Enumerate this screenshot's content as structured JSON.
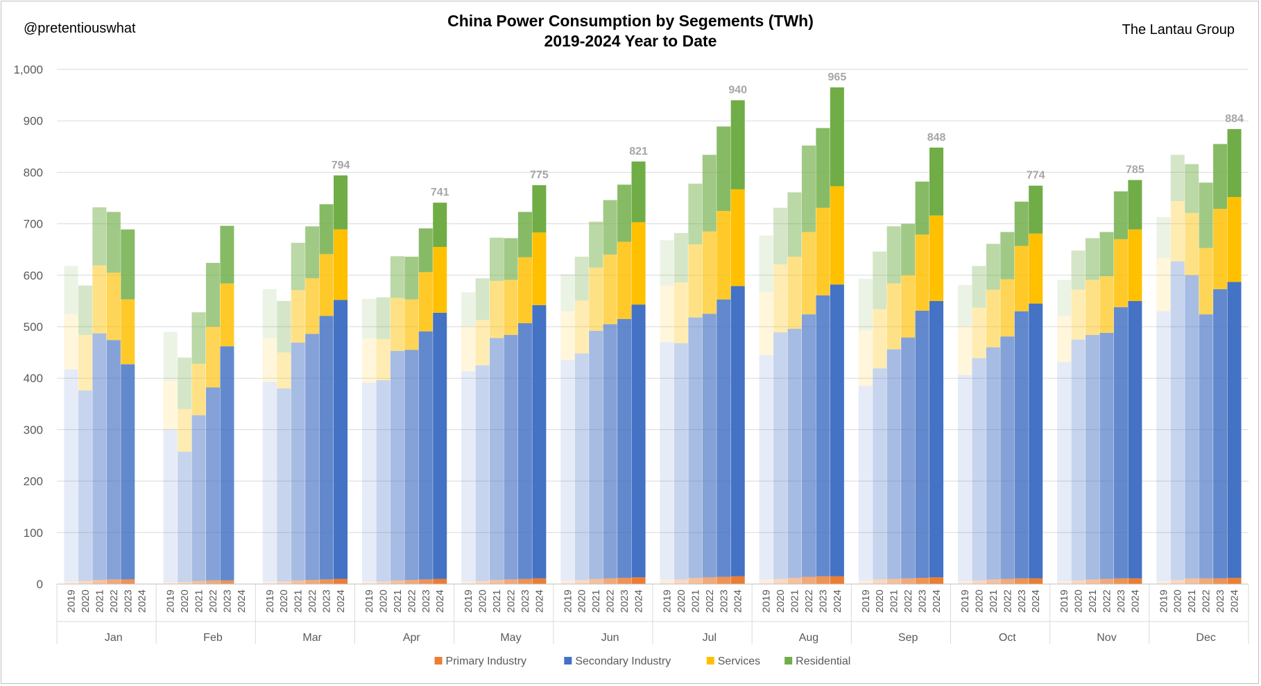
{
  "header": {
    "handle": "@pretentiouswhat",
    "source": "The Lantau Group",
    "title": "China Power Consumption  by Segements (TWh)",
    "subtitle": "2019-2024 Year to Date"
  },
  "chart_data": {
    "type": "bar",
    "stacked": true,
    "title": "China Power Consumption  by Segements (TWh)",
    "subtitle": "2019-2024 Year to Date",
    "ylim": [
      0,
      1000
    ],
    "yticks": [
      0,
      100,
      200,
      300,
      400,
      500,
      600,
      700,
      800,
      900,
      1000
    ],
    "ytick_labels": [
      "0",
      "100",
      "200",
      "300",
      "400",
      "500",
      "600",
      "700",
      "800",
      "900",
      "1,000"
    ],
    "grid": true,
    "legend_position": "bottom",
    "series": [
      {
        "name": "Primary Industry",
        "color": "#ED7D31"
      },
      {
        "name": "Secondary Industry",
        "color": "#4472C4"
      },
      {
        "name": "Services",
        "color": "#FFC000"
      },
      {
        "name": "Residential",
        "color": "#70AD47"
      }
    ],
    "year_opacity": {
      "2019": 0.14,
      "2020": 0.3,
      "2021": 0.48,
      "2022": 0.66,
      "2023": 0.84,
      "2024": 1.0
    },
    "groups": [
      {
        "month": "Jan",
        "bars": [
          {
            "year": "2019",
            "values": [
              5,
              412,
              107,
              94
            ]
          },
          {
            "year": "2020",
            "values": [
              6,
              370,
              108,
              96
            ]
          },
          {
            "year": "2021",
            "values": [
              8,
              479,
              132,
              113
            ]
          },
          {
            "year": "2022",
            "values": [
              9,
              465,
              131,
              118
            ]
          },
          {
            "year": "2023",
            "values": [
              9,
              418,
              126,
              136
            ]
          },
          {
            "year": "2024"
          }
        ]
      },
      {
        "month": "Feb",
        "bars": [
          {
            "year": "2019",
            "values": [
              4,
              296,
              95,
              95
            ]
          },
          {
            "year": "2020",
            "values": [
              4,
              253,
              83,
              100
            ]
          },
          {
            "year": "2021",
            "values": [
              6,
              322,
              100,
              100
            ]
          },
          {
            "year": "2022",
            "values": [
              7,
              375,
              118,
              124
            ]
          },
          {
            "year": "2023",
            "values": [
              7,
              455,
              122,
              112
            ]
          },
          {
            "year": "2024"
          }
        ]
      },
      {
        "month": "Mar",
        "bars": [
          {
            "year": "2019",
            "values": [
              5,
              388,
              85,
              95
            ]
          },
          {
            "year": "2020",
            "values": [
              5,
              375,
              70,
              100
            ]
          },
          {
            "year": "2021",
            "values": [
              7,
              462,
              102,
              92
            ]
          },
          {
            "year": "2022",
            "values": [
              8,
              478,
              108,
              101
            ]
          },
          {
            "year": "2023",
            "values": [
              9,
              512,
              120,
              97
            ]
          },
          {
            "year": "2024",
            "values": [
              10,
              542,
              137,
              105
            ],
            "total_label": "794"
          }
        ]
      },
      {
        "month": "Apr",
        "bars": [
          {
            "year": "2019",
            "values": [
              5,
              386,
              86,
              77
            ]
          },
          {
            "year": "2020",
            "values": [
              5,
              391,
              80,
              81
            ]
          },
          {
            "year": "2021",
            "values": [
              7,
              446,
              103,
              81
            ]
          },
          {
            "year": "2022",
            "values": [
              8,
              447,
              98,
              83
            ]
          },
          {
            "year": "2023",
            "values": [
              9,
              482,
              115,
              85
            ]
          },
          {
            "year": "2024",
            "values": [
              10,
              517,
              128,
              86
            ],
            "total_label": "741"
          }
        ]
      },
      {
        "month": "May",
        "bars": [
          {
            "year": "2019",
            "values": [
              5,
              408,
              88,
              66
            ]
          },
          {
            "year": "2020",
            "values": [
              6,
              419,
              88,
              81
            ]
          },
          {
            "year": "2021",
            "values": [
              8,
              470,
              111,
              84
            ]
          },
          {
            "year": "2022",
            "values": [
              9,
              475,
              107,
              81
            ]
          },
          {
            "year": "2023",
            "values": [
              10,
              497,
              128,
              88
            ]
          },
          {
            "year": "2024",
            "values": [
              11,
              531,
              141,
              92
            ],
            "total_label": "775"
          }
        ]
      },
      {
        "month": "Jun",
        "bars": [
          {
            "year": "2019",
            "values": [
              7,
              428,
              95,
              72
            ]
          },
          {
            "year": "2020",
            "values": [
              8,
              440,
              103,
              85
            ]
          },
          {
            "year": "2021",
            "values": [
              10,
              482,
              123,
              89
            ]
          },
          {
            "year": "2022",
            "values": [
              11,
              494,
              135,
              106
            ]
          },
          {
            "year": "2023",
            "values": [
              12,
              503,
              150,
              111
            ]
          },
          {
            "year": "2024",
            "values": [
              13,
              530,
              160,
              118
            ],
            "total_label": "821"
          }
        ]
      },
      {
        "month": "Jul",
        "bars": [
          {
            "year": "2019",
            "values": [
              9,
              461,
              110,
              88
            ]
          },
          {
            "year": "2020",
            "values": [
              9,
              459,
              118,
              96
            ]
          },
          {
            "year": "2021",
            "values": [
              12,
              506,
              142,
              118
            ]
          },
          {
            "year": "2022",
            "values": [
              13,
              512,
              160,
              149
            ]
          },
          {
            "year": "2023",
            "values": [
              14,
              539,
              172,
              164
            ]
          },
          {
            "year": "2024",
            "values": [
              15,
              564,
              188,
              173
            ],
            "total_label": "940"
          }
        ]
      },
      {
        "month": "Aug",
        "bars": [
          {
            "year": "2019",
            "values": [
              9,
              436,
              122,
              110
            ]
          },
          {
            "year": "2020",
            "values": [
              10,
              479,
              132,
              110
            ]
          },
          {
            "year": "2021",
            "values": [
              12,
              484,
              140,
              125
            ]
          },
          {
            "year": "2022",
            "values": [
              14,
              510,
              160,
              168
            ]
          },
          {
            "year": "2023",
            "values": [
              15,
              546,
              170,
              155
            ]
          },
          {
            "year": "2024",
            "values": [
              15,
              567,
              191,
              192
            ],
            "total_label": "965"
          }
        ]
      },
      {
        "month": "Sep",
        "bars": [
          {
            "year": "2019",
            "values": [
              7,
              378,
              108,
              100
            ]
          },
          {
            "year": "2020",
            "values": [
              9,
              410,
              115,
              112
            ]
          },
          {
            "year": "2021",
            "values": [
              10,
              446,
              128,
              111
            ]
          },
          {
            "year": "2022",
            "values": [
              11,
              468,
              121,
              100
            ]
          },
          {
            "year": "2023",
            "values": [
              12,
              519,
              148,
              103
            ]
          },
          {
            "year": "2024",
            "values": [
              13,
              537,
              166,
              132
            ],
            "total_label": "848"
          }
        ]
      },
      {
        "month": "Oct",
        "bars": [
          {
            "year": "2019",
            "values": [
              6,
              400,
              95,
              80
            ]
          },
          {
            "year": "2020",
            "values": [
              7,
              432,
              98,
              81
            ]
          },
          {
            "year": "2021",
            "values": [
              9,
              451,
              112,
              89
            ]
          },
          {
            "year": "2022",
            "values": [
              10,
              471,
              111,
              92
            ]
          },
          {
            "year": "2023",
            "values": [
              11,
              519,
              127,
              86
            ]
          },
          {
            "year": "2024",
            "values": [
              11,
              534,
              136,
              93
            ],
            "total_label": "774"
          }
        ]
      },
      {
        "month": "Nov",
        "bars": [
          {
            "year": "2019",
            "values": [
              6,
              425,
              90,
              70
            ]
          },
          {
            "year": "2020",
            "values": [
              7,
              468,
              97,
              76
            ]
          },
          {
            "year": "2021",
            "values": [
              9,
              475,
              107,
              81
            ]
          },
          {
            "year": "2022",
            "values": [
              10,
              478,
              110,
              86
            ]
          },
          {
            "year": "2023",
            "values": [
              11,
              527,
              132,
              93
            ]
          },
          {
            "year": "2024",
            "values": [
              11,
              539,
              139,
              96
            ],
            "total_label": "785"
          }
        ]
      },
      {
        "month": "Dec",
        "bars": [
          {
            "year": "2019",
            "values": [
              6,
              524,
              103,
              80
            ]
          },
          {
            "year": "2020",
            "values": [
              8,
              619,
              117,
              90
            ]
          },
          {
            "year": "2021",
            "values": [
              11,
              589,
              121,
              95
            ]
          },
          {
            "year": "2022",
            "values": [
              11,
              513,
              129,
              127
            ]
          },
          {
            "year": "2023",
            "values": [
              11,
              562,
              156,
              126
            ]
          },
          {
            "year": "2024",
            "values": [
              12,
              575,
              165,
              132
            ],
            "total_label": "884"
          }
        ]
      }
    ]
  }
}
